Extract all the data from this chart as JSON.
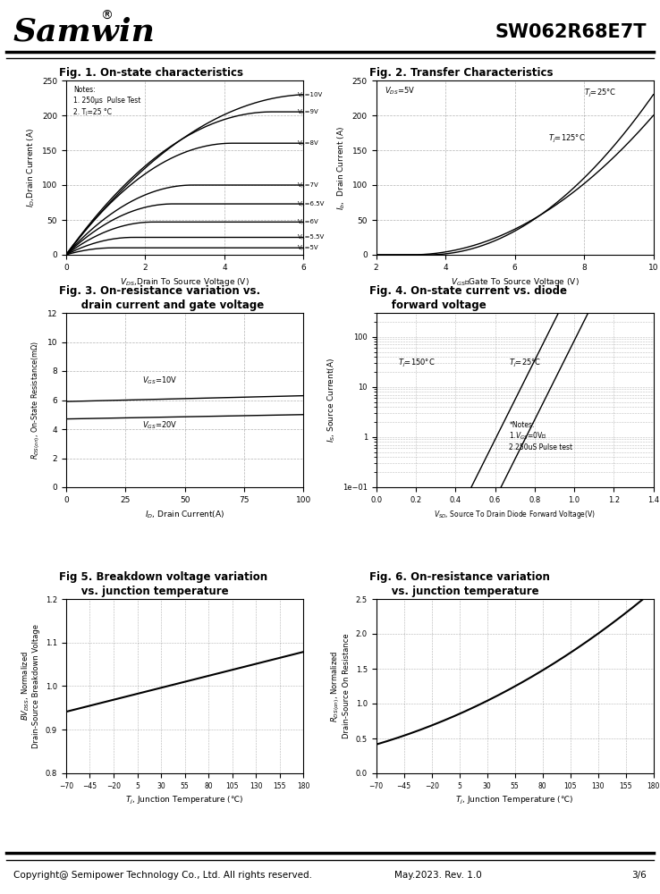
{
  "title_company": "Samwin",
  "title_part": "SW062R68E7T",
  "footer_left": "Copyright@ Semipower Technology Co., Ltd. All rights reserved.",
  "footer_mid": "May.2023. Rev. 1.0",
  "footer_right": "3/6",
  "fig1_title": "Fig. 1. On-state characteristics",
  "fig1_xlabel": "V₂ₛ,Drain To Source Voltage (V)",
  "fig1_ylabel": "I₂,Drain Current (A)",
  "fig1_xlim": [
    0,
    6
  ],
  "fig1_ylim": [
    0,
    250
  ],
  "fig1_xticks": [
    0,
    2,
    4,
    6
  ],
  "fig1_yticks": [
    0,
    50,
    100,
    150,
    200,
    250
  ],
  "fig1_notes": [
    "Notes:",
    "1. 250μs  Pulse Test",
    "2. Tⱼ=25 °C"
  ],
  "fig1_vgs_labels": [
    "Vⱼₛ=10V",
    "Vⱼₛ=9V",
    "Vⱼₛ=8V",
    "Vⱼₛ=7V",
    "Vⱼₛ=6.5V",
    "Vⱼₛ=6V",
    "Vⱼₛ=5.5V",
    "Vⱼₛ=5V"
  ],
  "fig1_vgs_values": [
    10,
    9,
    8,
    7,
    6.5,
    6,
    5.5,
    5
  ],
  "fig2_title": "Fig. 2. Transfer Characteristics",
  "fig2_xlabel": "Vⱼₛ，Gate To Source Voltage (V)",
  "fig2_ylabel": "I₂,  Drain Current (A)",
  "fig2_xlim": [
    2,
    10
  ],
  "fig2_ylim": [
    0,
    250
  ],
  "fig2_xticks": [
    2,
    4,
    6,
    8,
    10
  ],
  "fig2_yticks": [
    0,
    50,
    100,
    150,
    200,
    250
  ],
  "fig3_title": "Fig. 3. On-resistance variation vs.\n      drain current and gate voltage",
  "fig3_xlabel": "I₂, Drain Current(A)",
  "fig3_ylabel": "R₂ₛ(on), On-State Resistance(mΩ)",
  "fig3_xlim": [
    0,
    100
  ],
  "fig3_ylim": [
    0,
    12
  ],
  "fig3_xticks": [
    0,
    25,
    50,
    75,
    100
  ],
  "fig3_yticks": [
    0.0,
    2.0,
    4.0,
    6.0,
    8.0,
    10.0,
    12.0
  ],
  "fig4_title": "Fig. 4. On-state current vs. diode\n      forward voltage",
  "fig4_xlabel": "Vₛ₂, Source To Drain Diode Forward Voltage(V)",
  "fig4_ylabel": "Iₛ, Source Current(A)",
  "fig4_xlim": [
    0.0,
    1.4
  ],
  "fig4_xticks": [
    0.0,
    0.2,
    0.4,
    0.6,
    0.8,
    1.0,
    1.2,
    1.4
  ],
  "fig5_title": "Fig 5. Breakdown voltage variation\n      vs. junction temperature",
  "fig5_xlabel": "Tⱼ, Junction Temperature (℃)",
  "fig5_ylabel": "BV₂ₛₛ, Normalized\nDrain-Source Breakdown Voltage",
  "fig5_xlim": [
    -70,
    180
  ],
  "fig5_ylim": [
    0.8,
    1.2
  ],
  "fig5_xticks": [
    -70,
    -45,
    -20,
    5,
    30,
    55,
    80,
    105,
    130,
    155,
    180
  ],
  "fig5_yticks": [
    0.8,
    0.9,
    1.0,
    1.1,
    1.2
  ],
  "fig6_title": "Fig. 6. On-resistance variation\n      vs. junction temperature",
  "fig6_xlabel": "Tⱼ, Junction Temperature (℃)",
  "fig6_ylabel": "R₂ₛ(on), Normalized\nDrain-Source On Resistance",
  "fig6_xlim": [
    -70,
    180
  ],
  "fig6_ylim": [
    0.0,
    2.5
  ],
  "fig6_xticks": [
    -70,
    -45,
    -20,
    5,
    30,
    55,
    80,
    105,
    130,
    155,
    180
  ],
  "fig6_yticks": [
    0.0,
    0.5,
    1.0,
    1.5,
    2.0,
    2.5
  ]
}
